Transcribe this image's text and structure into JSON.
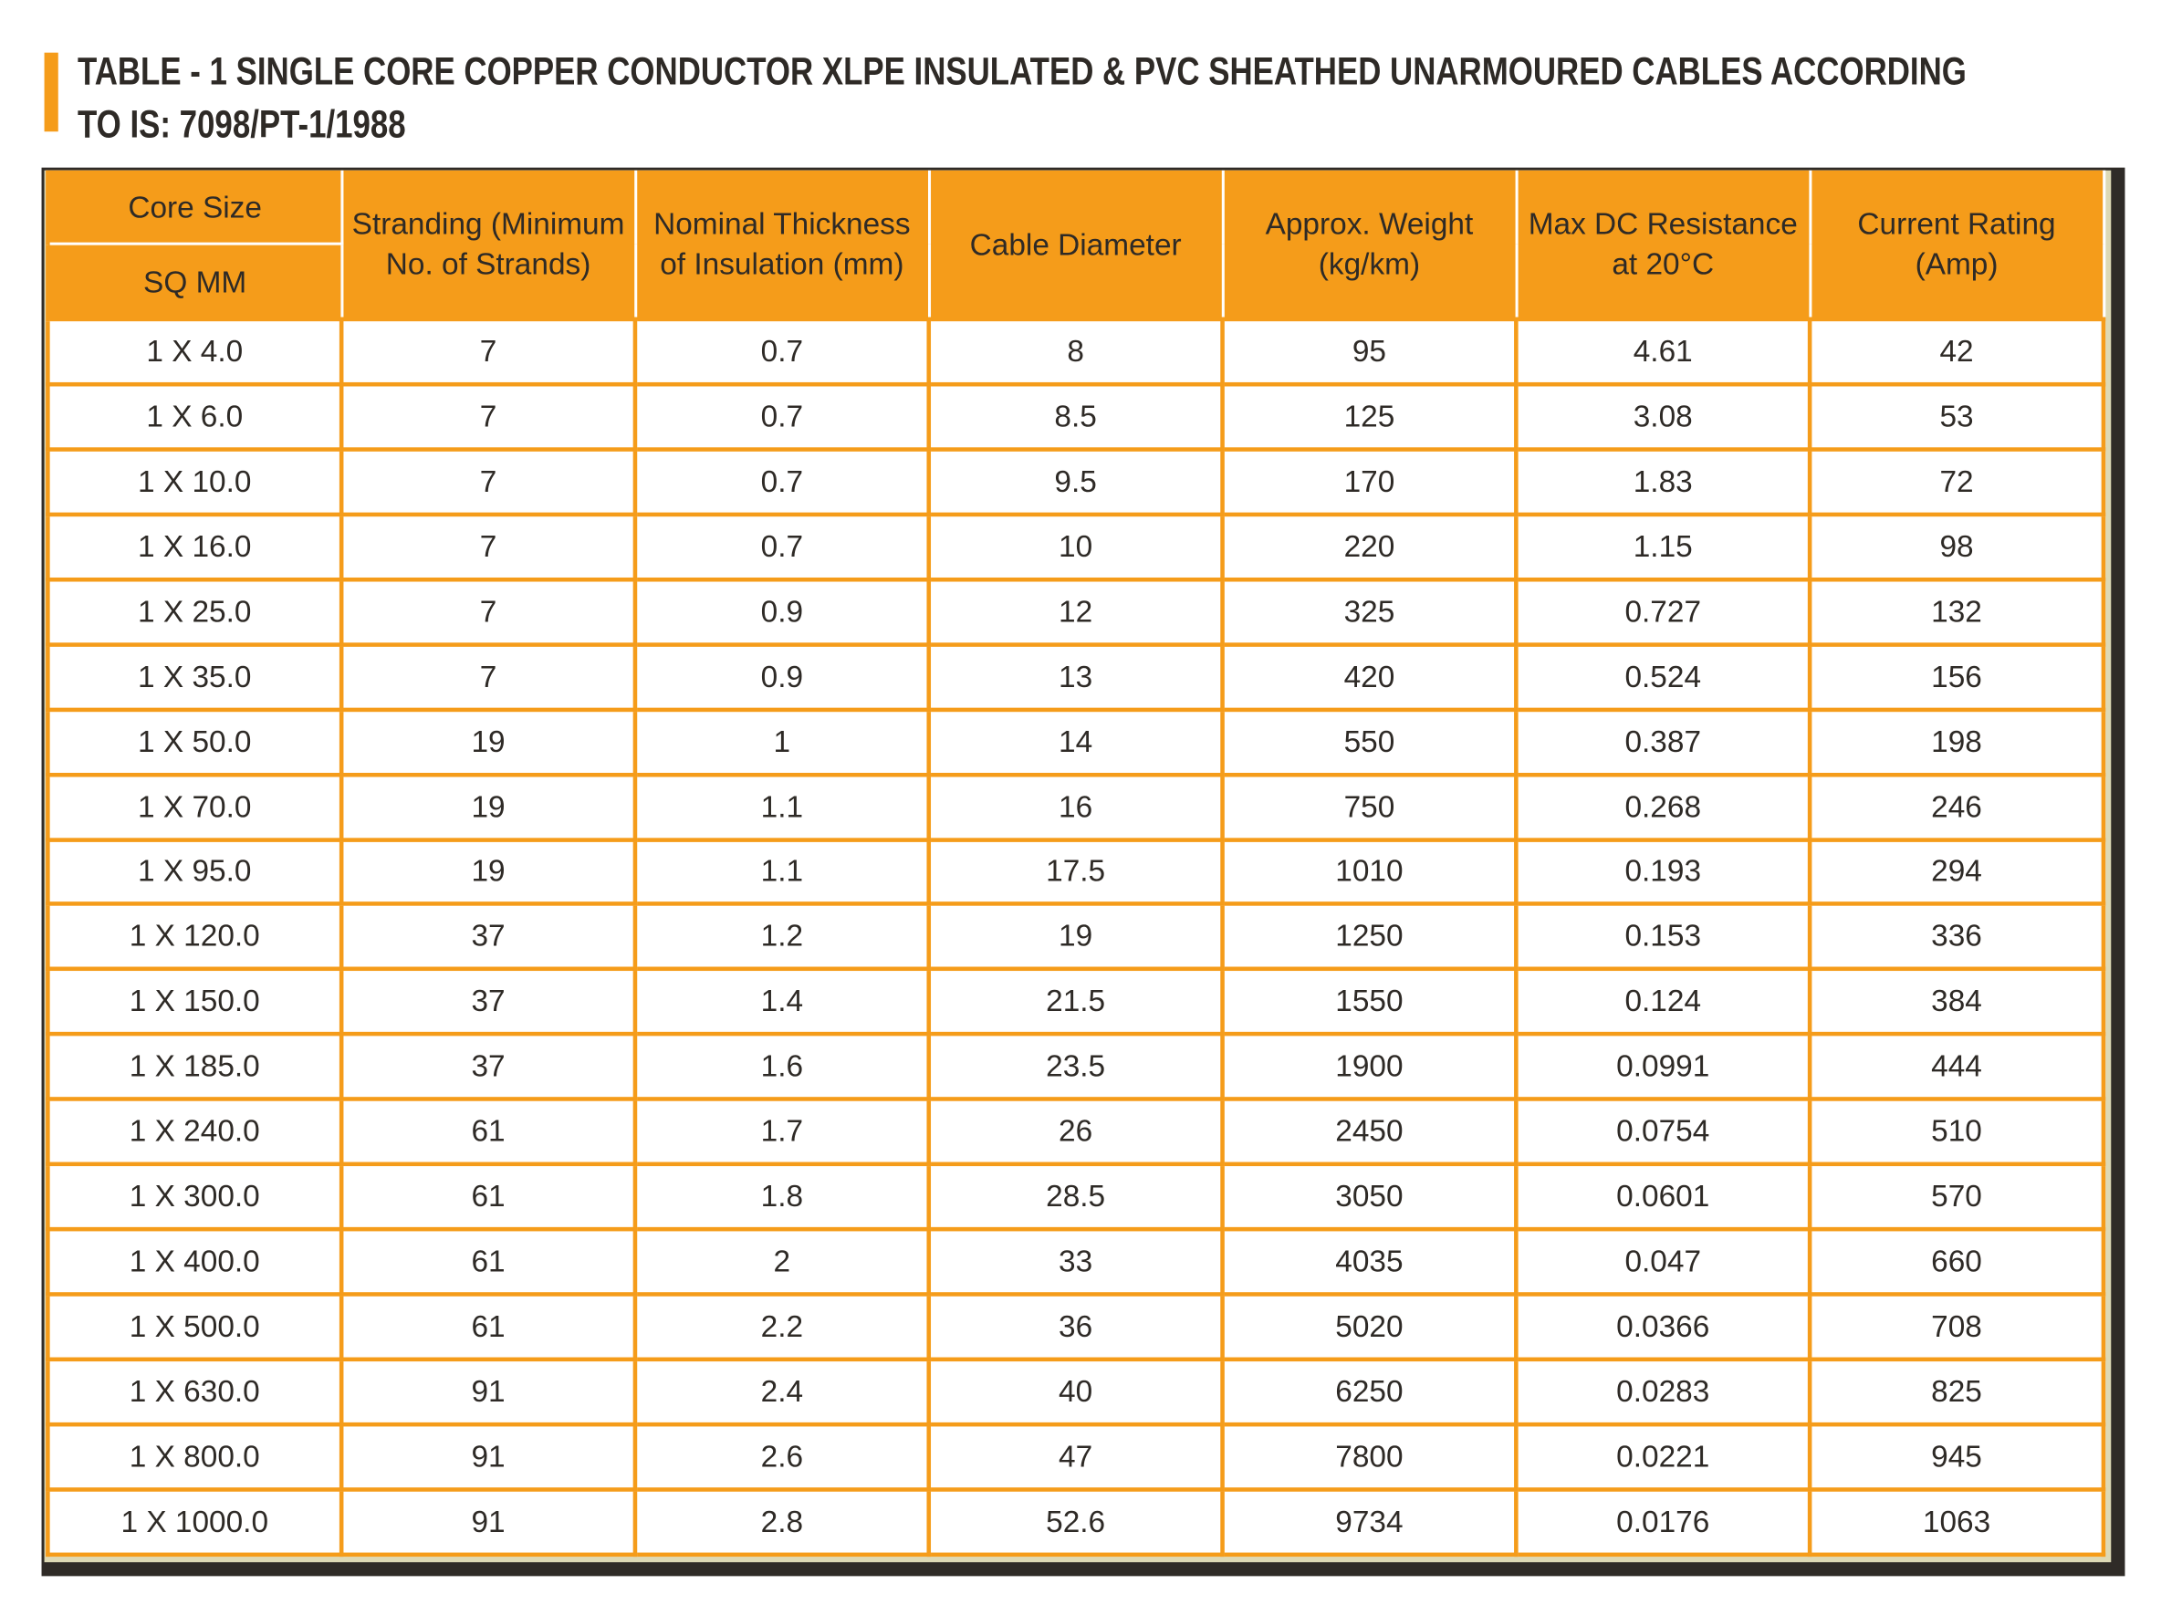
{
  "title": {
    "line1": "TABLE - 1 SINGLE CORE COPPER CONDUCTOR XLPE INSULATED & PVC SHEATHED UNARMOURED CABLES ACCORDING",
    "line2": "TO IS: 7098/PT-1/1988"
  },
  "colors": {
    "accent": "#f59c1a",
    "frame": "#2f2b27",
    "text": "#2e2a26"
  },
  "table": {
    "headers": {
      "core_size": "Core Size",
      "core_size_unit": "SQ MM",
      "stranding_1": "Stranding (Minimum",
      "stranding_2": "No. of Strands)",
      "thickness_1": "Nominal Thickness",
      "thickness_2": "of Insulation (mm)",
      "diameter": "Cable Diameter",
      "weight_1": "Approx. Weight",
      "weight_2": "(kg/km)",
      "resistance_1": "Max DC Resistance",
      "resistance_2": "at 20°C",
      "current_1": "Current Rating",
      "current_2": "(Amp)"
    },
    "rows": [
      [
        "1 X 4.0",
        "7",
        "0.7",
        "8",
        "95",
        "4.61",
        "42"
      ],
      [
        "1 X 6.0",
        "7",
        "0.7",
        "8.5",
        "125",
        "3.08",
        "53"
      ],
      [
        "1 X 10.0",
        "7",
        "0.7",
        "9.5",
        "170",
        "1.83",
        "72"
      ],
      [
        "1 X 16.0",
        "7",
        "0.7",
        "10",
        "220",
        "1.15",
        "98"
      ],
      [
        "1 X 25.0",
        "7",
        "0.9",
        "12",
        "325",
        "0.727",
        "132"
      ],
      [
        "1 X 35.0",
        "7",
        "0.9",
        "13",
        "420",
        "0.524",
        "156"
      ],
      [
        "1 X 50.0",
        "19",
        "1",
        "14",
        "550",
        "0.387",
        "198"
      ],
      [
        "1 X 70.0",
        "19",
        "1.1",
        "16",
        "750",
        "0.268",
        "246"
      ],
      [
        "1 X 95.0",
        "19",
        "1.1",
        "17.5",
        "1010",
        "0.193",
        "294"
      ],
      [
        "1 X 120.0",
        "37",
        "1.2",
        "19",
        "1250",
        "0.153",
        "336"
      ],
      [
        "1 X 150.0",
        "37",
        "1.4",
        "21.5",
        "1550",
        "0.124",
        "384"
      ],
      [
        "1 X 185.0",
        "37",
        "1.6",
        "23.5",
        "1900",
        "0.0991",
        "444"
      ],
      [
        "1 X 240.0",
        "61",
        "1.7",
        "26",
        "2450",
        "0.0754",
        "510"
      ],
      [
        "1 X 300.0",
        "61",
        "1.8",
        "28.5",
        "3050",
        "0.0601",
        "570"
      ],
      [
        "1 X 400.0",
        "61",
        "2",
        "33",
        "4035",
        "0.047",
        "660"
      ],
      [
        "1 X 500.0",
        "61",
        "2.2",
        "36",
        "5020",
        "0.0366",
        "708"
      ],
      [
        "1 X 630.0",
        "91",
        "2.4",
        "40",
        "6250",
        "0.0283",
        "825"
      ],
      [
        "1 X 800.0",
        "91",
        "2.6",
        "47",
        "7800",
        "0.0221",
        "945"
      ],
      [
        "1 X 1000.0",
        "91",
        "2.8",
        "52.6",
        "9734",
        "0.0176",
        "1063"
      ]
    ]
  }
}
